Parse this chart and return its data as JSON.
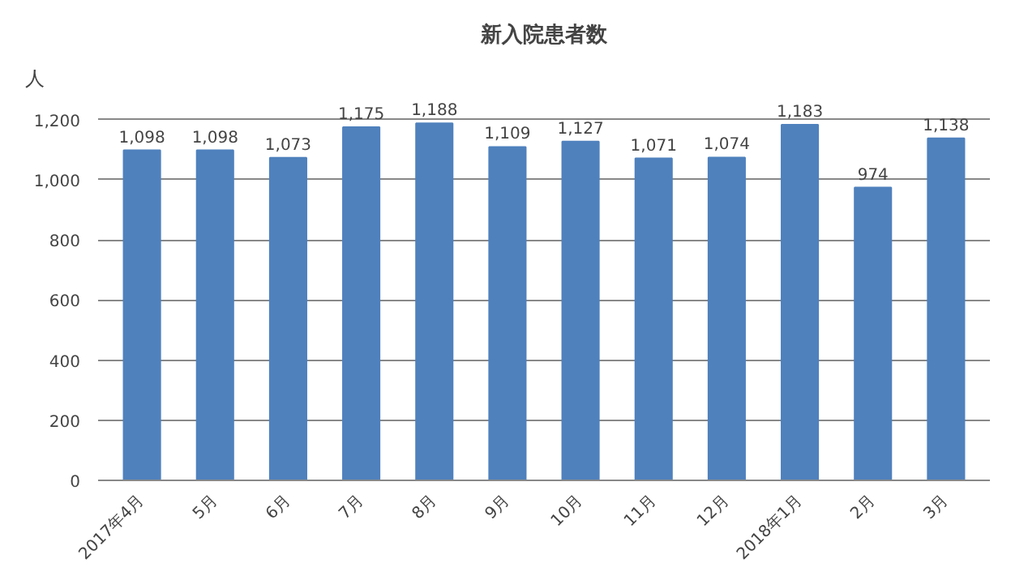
{
  "chart_data": {
    "type": "bar",
    "title": "新入院患者数",
    "ylabel": "人",
    "categories": [
      "2017年4月",
      "5月",
      "6月",
      "7月",
      "8月",
      "9月",
      "10月",
      "11月",
      "12月",
      "2018年1月",
      "2月",
      "3月"
    ],
    "values": [
      1098,
      1098,
      1073,
      1175,
      1188,
      1109,
      1127,
      1071,
      1074,
      1183,
      974,
      1138
    ],
    "value_labels": [
      "1,098",
      "1,098",
      "1,073",
      "1,175",
      "1,188",
      "1,109",
      "1,127",
      "1,071",
      "1,074",
      "1,183",
      "974",
      "1,138"
    ],
    "color": "#4f81bd",
    "ylim": [
      0,
      1200
    ],
    "yticks": [
      0,
      200,
      400,
      600,
      800,
      {
        "value": 1000,
        "label": "1,000"
      },
      {
        "value": 1200,
        "label": "1,200"
      }
    ],
    "grid": "y"
  }
}
